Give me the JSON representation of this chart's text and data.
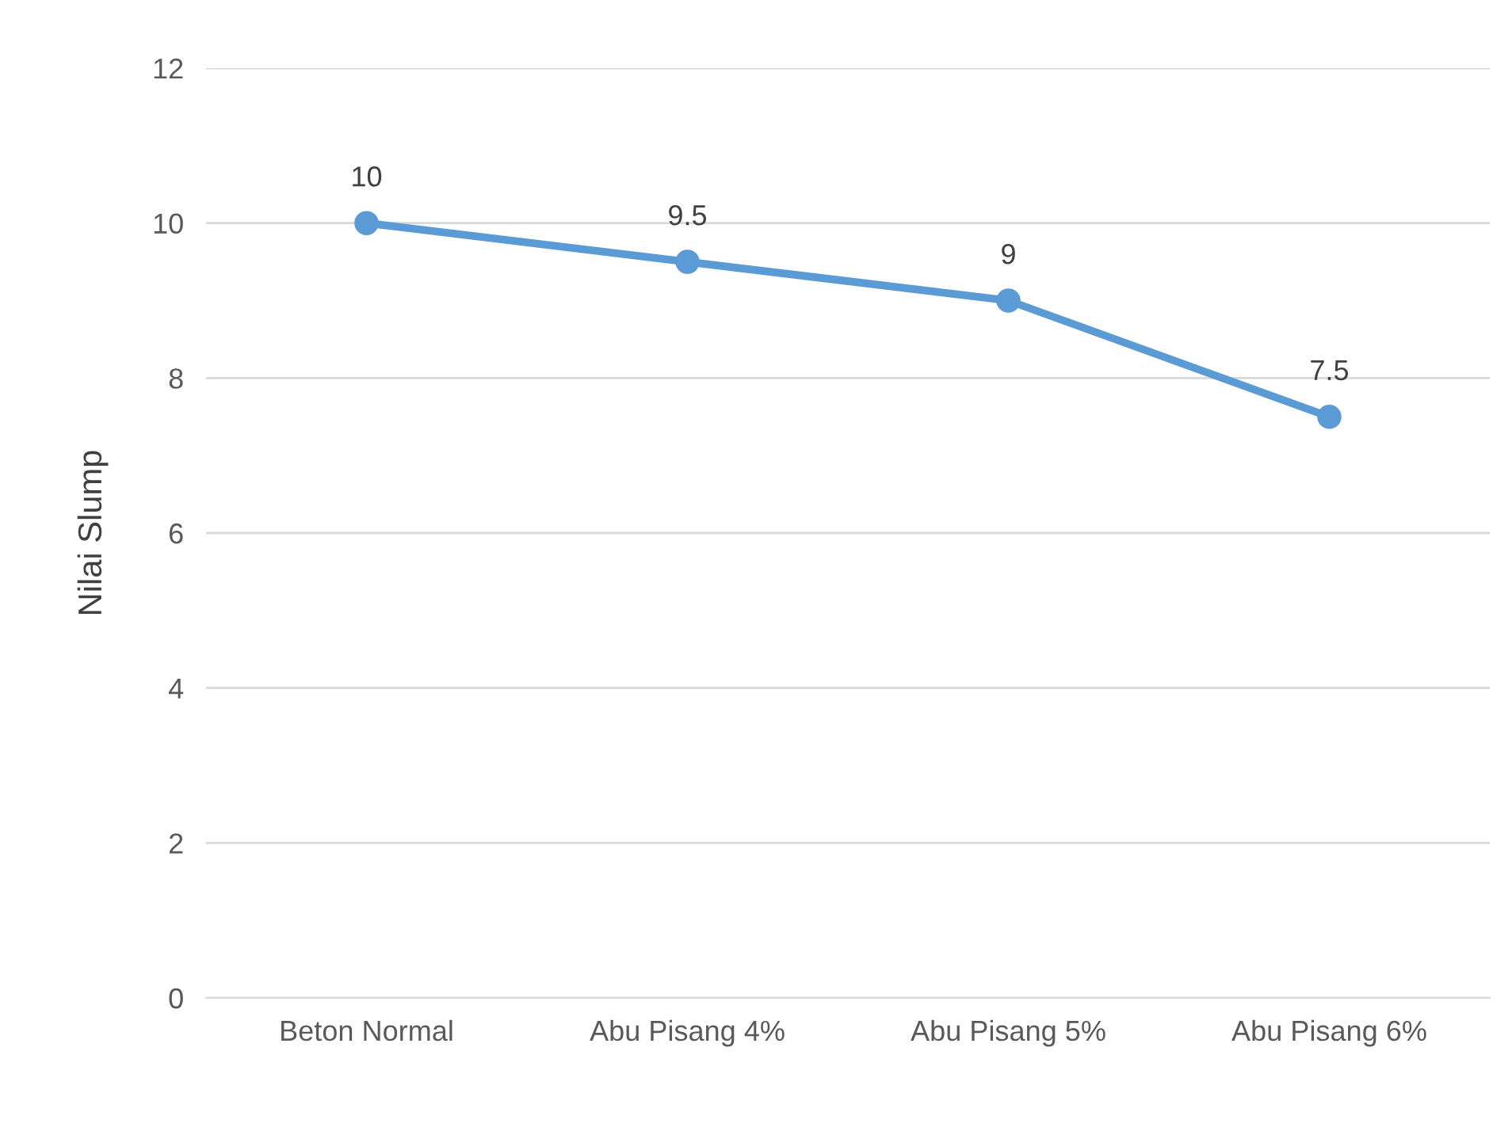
{
  "chart_data": {
    "type": "line",
    "ylabel": "Nilai Slump",
    "categories": [
      "Beton Normal",
      "Abu Pisang 4%",
      "Abu Pisang 5%",
      "Abu Pisang 6%"
    ],
    "series": [
      {
        "color": "#5b9bd5",
        "values": [
          10,
          9.5,
          9,
          7.5
        ]
      }
    ],
    "ylim": [
      0,
      12
    ],
    "yticks": [
      0,
      2,
      4,
      6,
      8,
      10,
      12
    ],
    "grid": "y",
    "marker": "circle",
    "line_style": "solid",
    "data_labels": true
  }
}
